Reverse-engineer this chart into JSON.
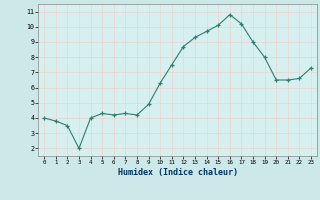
{
  "x": [
    0,
    1,
    2,
    3,
    4,
    5,
    6,
    7,
    8,
    9,
    10,
    11,
    12,
    13,
    14,
    15,
    16,
    17,
    18,
    19,
    20,
    21,
    22,
    23
  ],
  "y": [
    4.0,
    3.8,
    3.5,
    2.0,
    4.0,
    4.3,
    4.2,
    4.3,
    4.2,
    4.9,
    6.3,
    7.5,
    8.7,
    9.3,
    9.7,
    10.1,
    10.8,
    10.2,
    9.0,
    8.0,
    6.5,
    6.5,
    6.6,
    7.3
  ],
  "xlabel": "Humidex (Indice chaleur)",
  "xlim": [
    -0.5,
    23.5
  ],
  "ylim": [
    1.5,
    11.5
  ],
  "yticks": [
    2,
    3,
    4,
    5,
    6,
    7,
    8,
    9,
    10,
    11
  ],
  "xticks": [
    0,
    1,
    2,
    3,
    4,
    5,
    6,
    7,
    8,
    9,
    10,
    11,
    12,
    13,
    14,
    15,
    16,
    17,
    18,
    19,
    20,
    21,
    22,
    23
  ],
  "line_color": "#2d7f6f",
  "marker_color": "#2d7f6f",
  "bg_color": "#cce8e8",
  "grid_color": "#e8d8d8",
  "plot_bg": "#d6f0f0"
}
